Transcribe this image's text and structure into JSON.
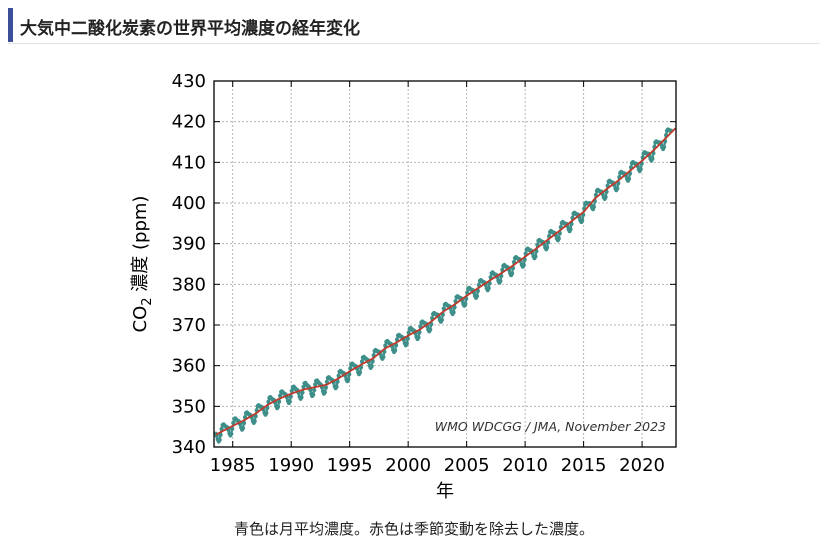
{
  "page": {
    "heading": "大気中二酸化炭素の世界平均濃度の経年変化",
    "caption": "青色は月平均濃度。赤色は季節変動を除去した濃度。"
  },
  "colors": {
    "heading_accent": "#3b4f9a",
    "monthly_series": "#3e8f8a",
    "trend_series": "#c0392b",
    "grid": "#b5b5b5"
  },
  "chart_data": {
    "type": "line",
    "title": "",
    "xlabel": "年",
    "ylabel_prefix": "CO",
    "ylabel_subscript": "2",
    "ylabel_suffix": " 濃度 (ppm)",
    "credit": "WMO WDCGG / JMA, November 2023",
    "xlim": [
      1983.4,
      2022.9
    ],
    "ylim": [
      340,
      430
    ],
    "xticks": [
      1985,
      1990,
      1995,
      2000,
      2005,
      2010,
      2015,
      2020
    ],
    "xtick_labels": [
      "1985",
      "1990",
      "1995",
      "2000",
      "2005",
      "2010",
      "2015",
      "2020"
    ],
    "yticks": [
      340,
      350,
      360,
      370,
      380,
      390,
      400,
      410,
      420,
      430
    ],
    "ytick_labels": [
      "340",
      "350",
      "360",
      "370",
      "380",
      "390",
      "400",
      "410",
      "420",
      "430"
    ],
    "grid": true,
    "series": [
      {
        "name": "月平均濃度",
        "kind": "monthly",
        "color": "#3e8f8a",
        "seasonal_amplitude_ppm": 1.6,
        "x": [
          1984,
          1985,
          1986,
          1987,
          1988,
          1989,
          1990,
          1991,
          1992,
          1993,
          1994,
          1995,
          1996,
          1997,
          1998,
          1999,
          2000,
          2001,
          2002,
          2003,
          2004,
          2005,
          2006,
          2007,
          2008,
          2009,
          2010,
          2011,
          2012,
          2013,
          2014,
          2015,
          2016,
          2017,
          2018,
          2019,
          2020,
          2021,
          2022
        ],
        "values": [
          343.7,
          345.2,
          346.6,
          348.3,
          350.4,
          351.9,
          353.1,
          354.1,
          354.7,
          355.3,
          356.8,
          358.6,
          360.3,
          361.8,
          364.2,
          365.7,
          367.4,
          368.9,
          370.9,
          373.3,
          375.1,
          377.2,
          379.1,
          381.0,
          382.8,
          384.7,
          386.8,
          388.9,
          391.1,
          393.3,
          395.6,
          397.8,
          401.2,
          403.5,
          405.6,
          408.0,
          410.4,
          413.0,
          415.9
        ]
      },
      {
        "name": "季節変動を除去した濃度",
        "kind": "trend",
        "color": "#c0392b",
        "x": [
          1984,
          1985,
          1986,
          1987,
          1988,
          1989,
          1990,
          1991,
          1992,
          1993,
          1994,
          1995,
          1996,
          1997,
          1998,
          1999,
          2000,
          2001,
          2002,
          2003,
          2004,
          2005,
          2006,
          2007,
          2008,
          2009,
          2010,
          2011,
          2012,
          2013,
          2014,
          2015,
          2016,
          2017,
          2018,
          2019,
          2020,
          2021,
          2022
        ],
        "values": [
          343.7,
          345.2,
          346.6,
          348.3,
          350.4,
          351.9,
          353.1,
          354.1,
          354.7,
          355.3,
          356.8,
          358.6,
          360.3,
          361.8,
          364.2,
          365.7,
          367.4,
          368.9,
          370.9,
          373.3,
          375.1,
          377.2,
          379.1,
          381.0,
          382.8,
          384.7,
          386.8,
          388.9,
          391.1,
          393.3,
          395.6,
          397.8,
          401.2,
          403.5,
          405.6,
          408.0,
          410.4,
          413.0,
          415.9
        ]
      }
    ]
  }
}
